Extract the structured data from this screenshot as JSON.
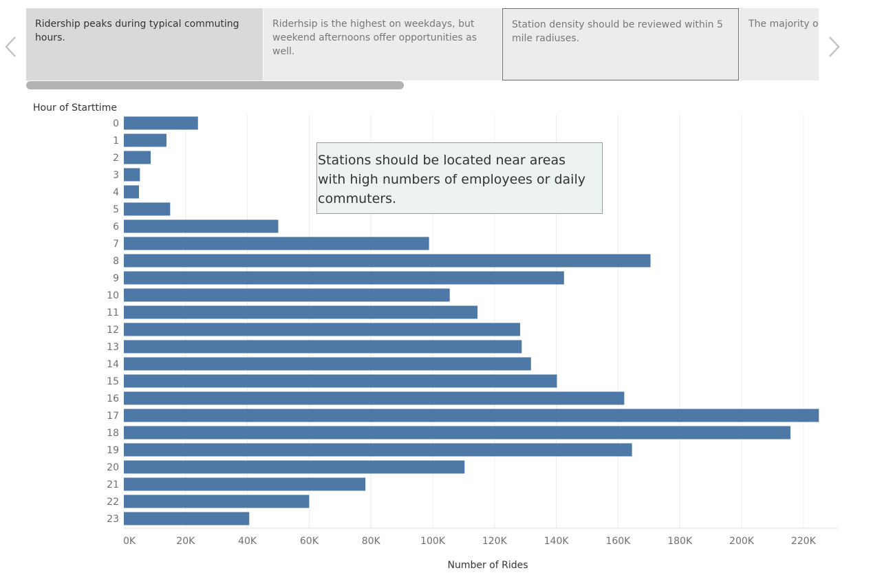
{
  "story": {
    "points": [
      "Ridership peaks during typical commuting hours.",
      "Riderhsip is the highest on weekdays, but weekend afternoons offer opportunities as well.",
      "Station density should be reviewed within 5 mile radiuses.",
      "The majority of"
    ],
    "active_index": 0
  },
  "annotation": {
    "text": "Stations should be located near areas with high numbers of employees or daily commuters."
  },
  "colors": {
    "bar": "#4e79a7",
    "grid": "#ececec"
  },
  "icons": {
    "prev": "chevron-left-icon",
    "next": "chevron-right-icon"
  },
  "chart_data": {
    "type": "bar",
    "orientation": "horizontal",
    "title": "",
    "ylabel": "Hour of Starttime",
    "xlabel": "Number of Rides",
    "categories": [
      "0",
      "1",
      "2",
      "3",
      "4",
      "5",
      "6",
      "7",
      "8",
      "9",
      "10",
      "11",
      "12",
      "13",
      "14",
      "15",
      "16",
      "17",
      "18",
      "19",
      "20",
      "21",
      "22",
      "23"
    ],
    "values": [
      24000,
      13800,
      8700,
      5200,
      4900,
      15000,
      50000,
      98800,
      170500,
      142500,
      105500,
      114500,
      128300,
      128800,
      131800,
      140200,
      162000,
      225000,
      215800,
      164500,
      110300,
      78200,
      60000,
      40600
    ],
    "xlim": [
      0,
      225000
    ],
    "xticks": [
      0,
      20000,
      40000,
      60000,
      80000,
      100000,
      120000,
      140000,
      160000,
      180000,
      200000,
      220000
    ],
    "xtick_labels": [
      "0K",
      "20K",
      "40K",
      "60K",
      "80K",
      "100K",
      "120K",
      "140K",
      "160K",
      "180K",
      "200K",
      "220K"
    ],
    "grid": true,
    "legend": false
  }
}
